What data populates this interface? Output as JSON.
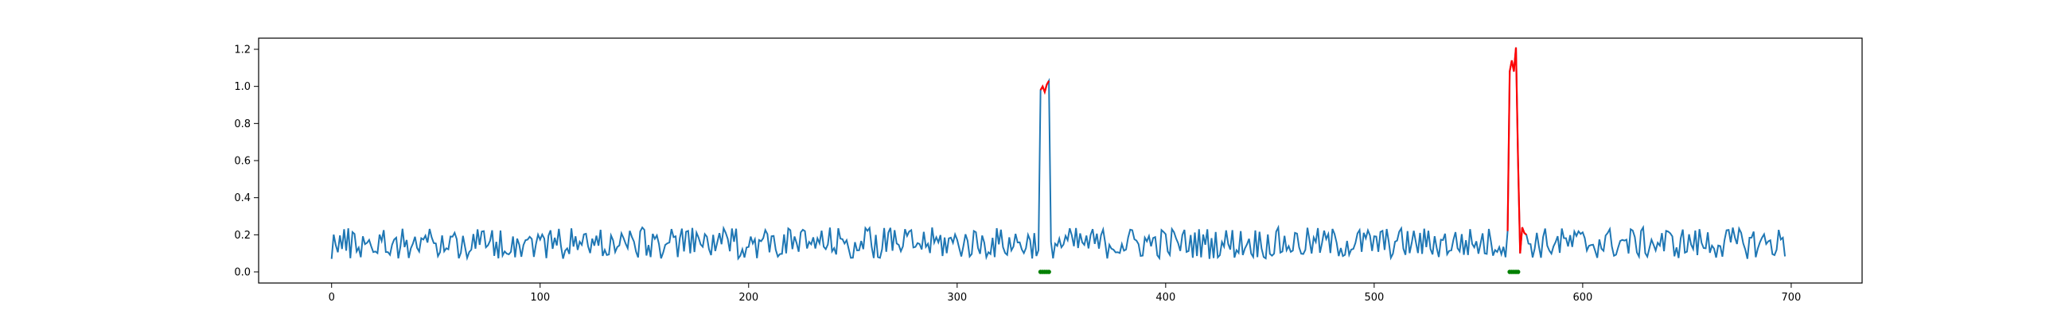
{
  "chart_data": {
    "type": "line",
    "title": "",
    "xlabel": "",
    "ylabel": "",
    "xlim": [
      -35,
      734
    ],
    "ylim": [
      -0.06,
      1.26
    ],
    "xticks": [
      0,
      100,
      200,
      300,
      400,
      500,
      600,
      700
    ],
    "yticks": [
      0.0,
      0.2,
      0.4,
      0.6,
      0.8,
      1.0,
      1.2
    ],
    "ytick_labels": [
      "0.0",
      "0.2",
      "0.4",
      "0.6",
      "0.8",
      "1.0",
      "1.2"
    ],
    "grid": false,
    "legend": "none",
    "series": [
      {
        "color": "#1f77b4",
        "role": "signal",
        "x_start": 0,
        "x_end": 697,
        "baseline": 0.155,
        "amplitude": 0.085,
        "plateaus": [
          {
            "x": [
              340,
              344
            ],
            "value": 0.99
          }
        ]
      },
      {
        "color": "#ff0000",
        "role": "anomaly",
        "segments": [
          {
            "x": [
              340,
              341,
              342,
              343,
              344
            ],
            "y": [
              0.98,
              1.0,
              0.97,
              1.01,
              1.03
            ]
          },
          {
            "x": [
              564,
              565,
              566,
              567,
              568,
              569,
              570,
              571,
              572,
              573
            ],
            "y": [
              0.22,
              1.08,
              1.14,
              1.08,
              1.21,
              0.6,
              0.1,
              0.24,
              0.21,
              0.2
            ]
          }
        ]
      },
      {
        "color": "#008000",
        "role": "markers",
        "x": [
          340,
          341,
          342,
          343,
          344,
          565,
          566,
          567,
          568,
          569
        ],
        "y": [
          0.0,
          0.0,
          0.0,
          0.0,
          0.0,
          0.0,
          0.0,
          0.0,
          0.0,
          0.0
        ]
      }
    ]
  }
}
